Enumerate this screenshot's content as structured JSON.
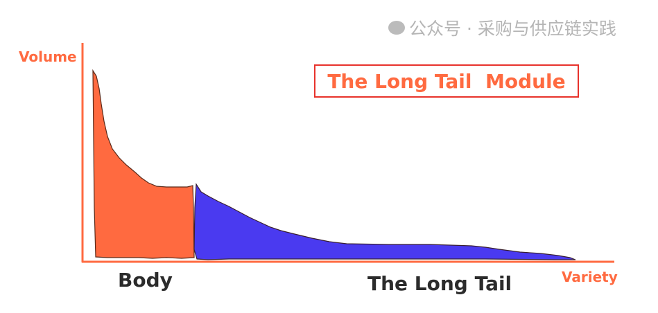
{
  "title": "The Long Tail  Module",
  "axes": {
    "y_label": "Volume",
    "x_label": "Variety"
  },
  "regions": [
    {
      "label": "Body",
      "color": "#ff6a40"
    },
    {
      "label": "The Long Tail",
      "color": "#4a3af0"
    }
  ],
  "axis_color": "#ff6a40",
  "watermark": "公众号 · 采购与供应链实践"
}
